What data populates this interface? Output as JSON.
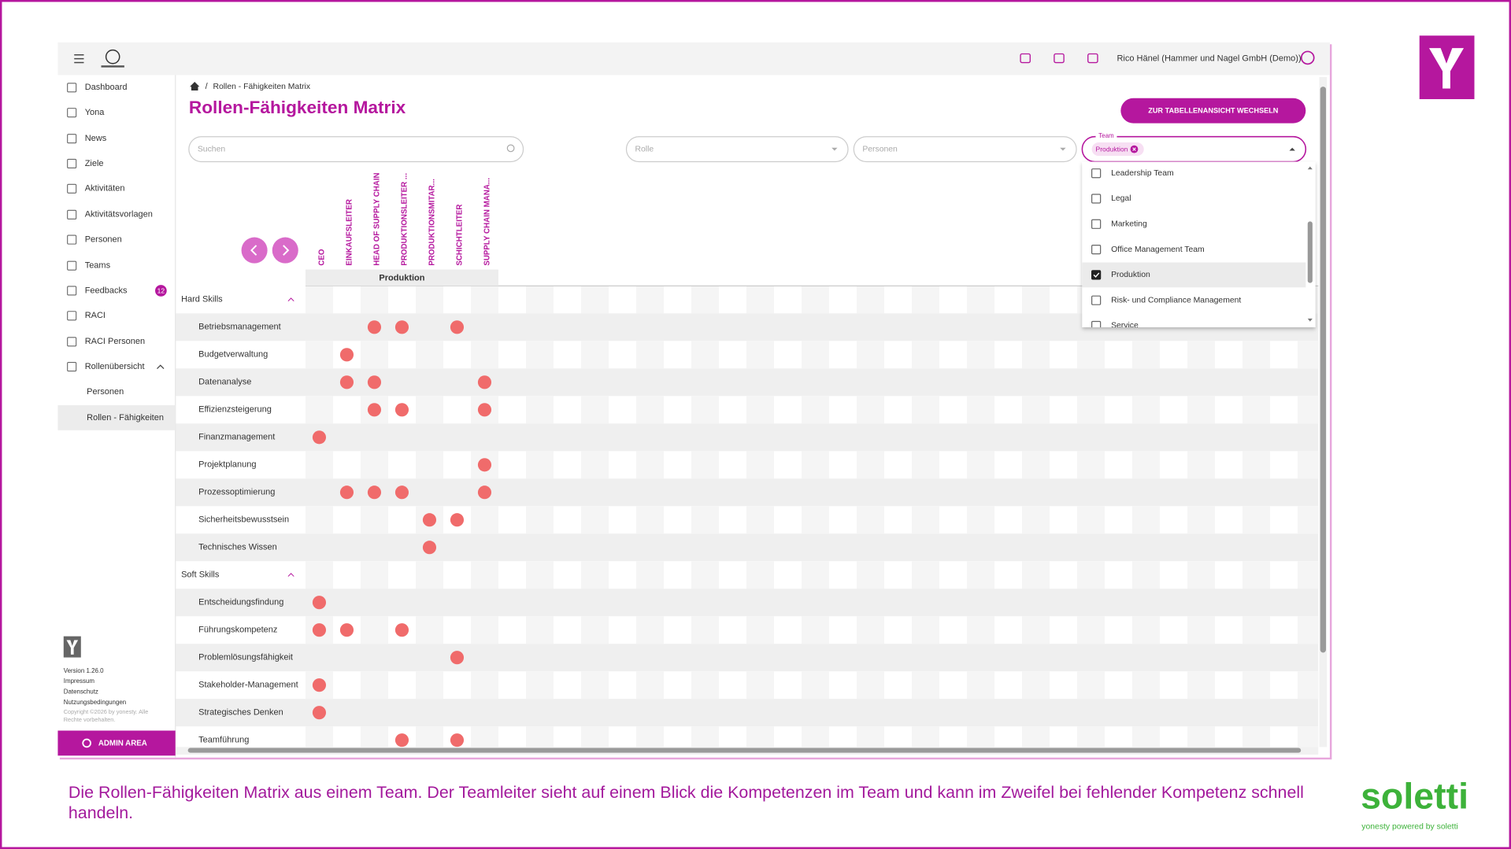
{
  "header": {
    "user": "Rico Hänel (Hammer und Nagel GmbH (Demo))"
  },
  "sidebar": {
    "items": [
      "Dashboard",
      "Yona",
      "News",
      "Ziele",
      "Aktivitäten",
      "Aktivitätsvorlagen",
      "Personen",
      "Teams",
      "Feedbacks",
      "RACI",
      "RACI Personen",
      "Rollenübersicht"
    ],
    "feedback_badge": 12,
    "sub_items": [
      "Personen",
      "Rollen - Fähigkeiten"
    ],
    "footer": [
      "Version 1.26.0",
      "Impressum",
      "Datenschutz",
      "Nutzungsbedingungen",
      "Copyright ©2026 by yonesty. Alle",
      "Rechte vorbehalten."
    ],
    "admin": "ADMIN AREA"
  },
  "breadcrumb": "Rollen - Fähigkeiten Matrix",
  "title": "Rollen-Fähigkeiten Matrix",
  "button": "ZUR TABELLENANSICHT WECHSELN",
  "filters": {
    "search": "Suchen",
    "role": "Rolle",
    "persons": "Personen",
    "team_label": "Team",
    "team_chip": "Produktion"
  },
  "dropdown": {
    "options": [
      "Leadership Team",
      "Legal",
      "Marketing",
      "Office Management Team",
      "Produktion",
      "Risk- und Compliance Management",
      "Service"
    ],
    "checked": 4
  },
  "matrix": {
    "group": "Produktion",
    "roles": [
      "CEO",
      "EINKAUFSLEITER",
      "HEAD OF SUPPLY CHAIN",
      "PRODUKTIONSLEITER ...",
      "PRODUKTIONSMITAR...",
      "SCHICHTLEITER",
      "SUPPLY CHAIN MANA..."
    ],
    "categories": [
      {
        "name": "Hard Skills",
        "skills": [
          {
            "name": "Betriebsmanagement",
            "roles": [
              2,
              3,
              5
            ]
          },
          {
            "name": "Budgetverwaltung",
            "roles": [
              1
            ]
          },
          {
            "name": "Datenanalyse",
            "roles": [
              1,
              2,
              6
            ]
          },
          {
            "name": "Effizienzsteigerung",
            "roles": [
              2,
              3,
              6
            ]
          },
          {
            "name": "Finanzmanagement",
            "roles": [
              0
            ]
          },
          {
            "name": "Projektplanung",
            "roles": [
              6
            ]
          },
          {
            "name": "Prozessoptimierung",
            "roles": [
              1,
              2,
              3,
              6
            ]
          },
          {
            "name": "Sicherheitsbewusstsein",
            "roles": [
              4,
              5
            ]
          },
          {
            "name": "Technisches Wissen",
            "roles": [
              4
            ]
          }
        ]
      },
      {
        "name": "Soft Skills",
        "skills": [
          {
            "name": "Entscheidungsfindung",
            "roles": [
              0
            ]
          },
          {
            "name": "Führungskompetenz",
            "roles": [
              0,
              1,
              3
            ]
          },
          {
            "name": "Problemlösungsfähigkeit",
            "roles": [
              5
            ]
          },
          {
            "name": "Stakeholder-Management",
            "roles": [
              0
            ]
          },
          {
            "name": "Strategisches Denken",
            "roles": [
              0
            ]
          },
          {
            "name": "Teamführung",
            "roles": [
              3,
              5
            ]
          }
        ]
      }
    ]
  },
  "caption": "Die Rollen-Fähigkeiten Matrix aus einem Team. Der Teamleiter sieht auf einem Blick die Kompetenzen im Team und kann im Zweifel bei fehlender Kompetenz schnell handeln.",
  "brand": {
    "logo": "soletti",
    "tagline": "yonesty powered by soletti"
  }
}
